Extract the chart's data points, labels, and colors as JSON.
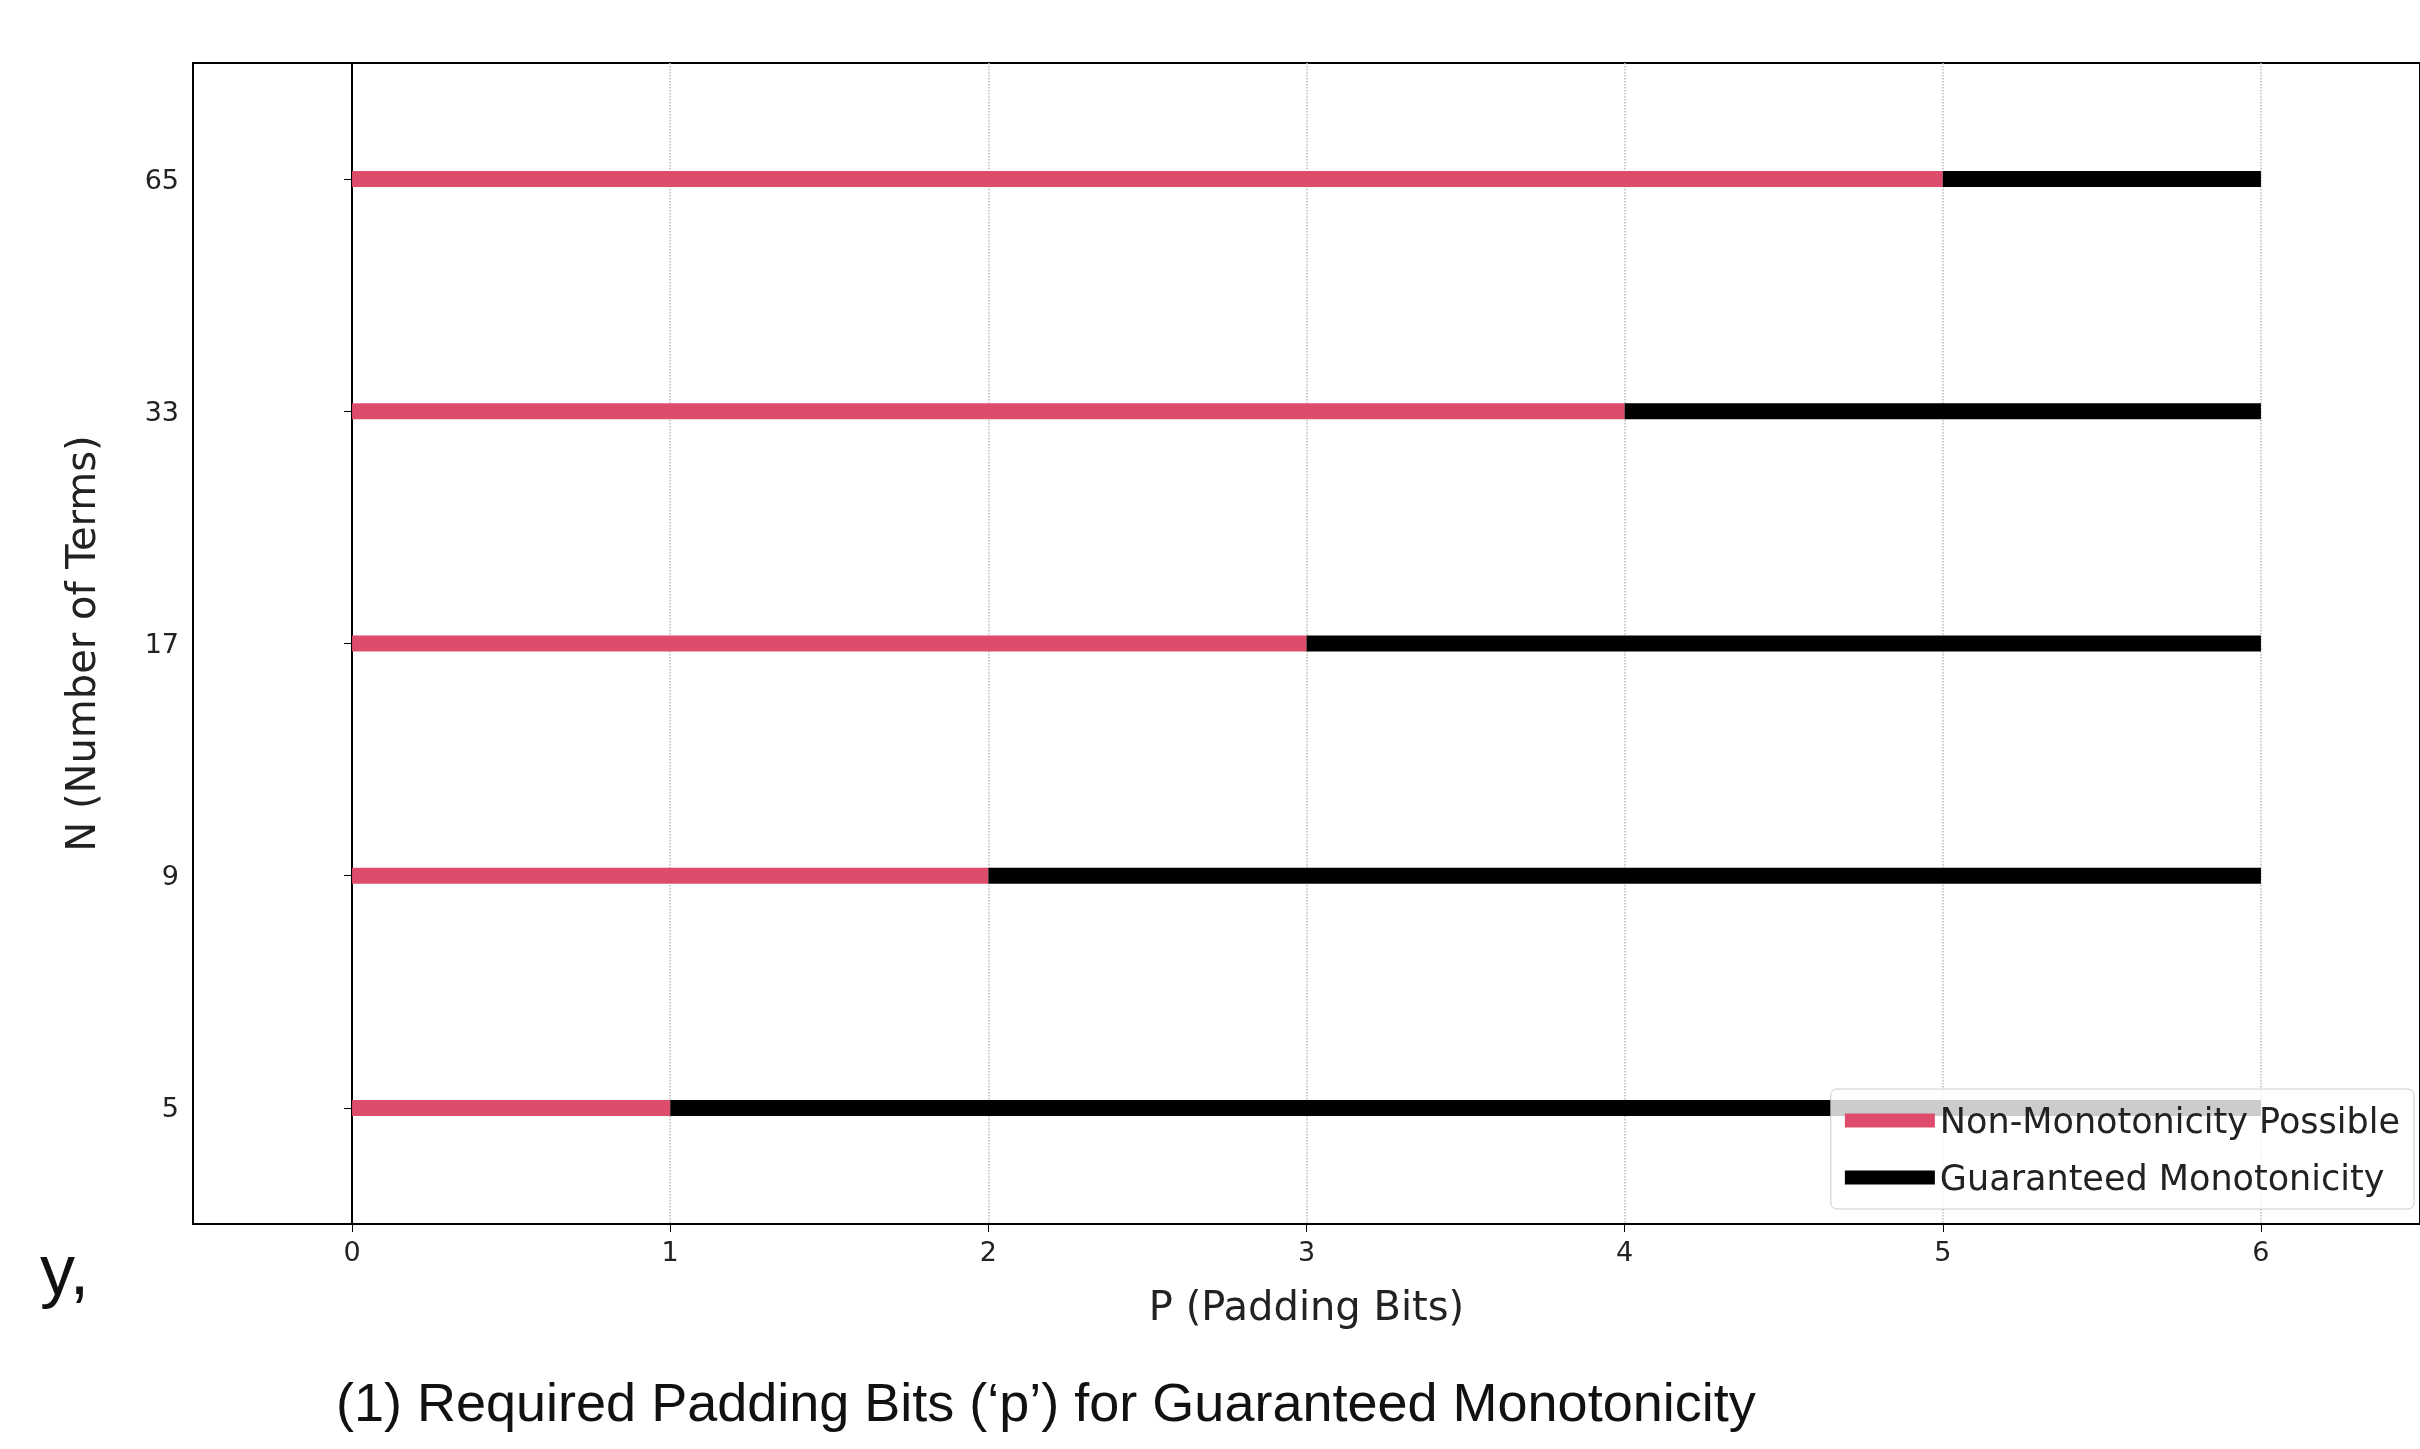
{
  "chart_data": {
    "type": "bar",
    "orientation": "horizontal",
    "stacked": true,
    "categories": [
      "65",
      "33",
      "17",
      "9",
      "5"
    ],
    "series": [
      {
        "name": "Non-Monotonicity Possible",
        "color": "#de4c6c",
        "values": [
          5,
          4,
          3,
          2,
          1
        ]
      },
      {
        "name": "Guaranteed Monotonicity",
        "color": "#000000",
        "values": [
          1,
          2,
          3,
          4,
          5
        ]
      }
    ],
    "xlabel": "P (Padding Bits)",
    "ylabel": "N (Number of Terms)",
    "xlim": [
      -0.5,
      6.5
    ],
    "xticks": [
      0,
      1,
      2,
      3,
      4,
      5,
      6
    ],
    "grid": "x",
    "legend": "bottom right",
    "annotations": [
      "(1) Required Padding Bits (‘p’) for Guaranteed Monotonicity",
      "y,"
    ]
  }
}
